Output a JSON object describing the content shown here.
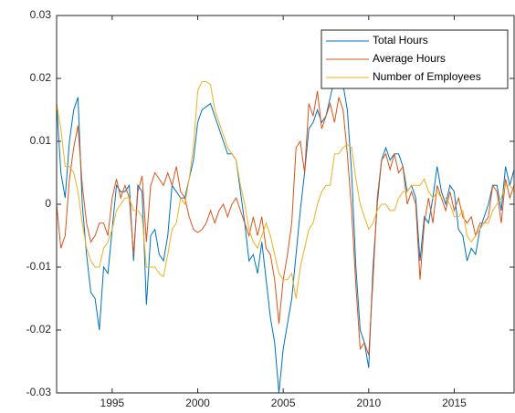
{
  "chart_data": {
    "type": "line",
    "x": [
      1991.75,
      1992,
      1992.25,
      1992.5,
      1992.75,
      1993,
      1993.25,
      1993.5,
      1993.75,
      1994,
      1994.25,
      1994.5,
      1994.75,
      1995,
      1995.25,
      1995.5,
      1995.75,
      1996,
      1996.25,
      1996.5,
      1996.75,
      1997,
      1997.25,
      1997.5,
      1997.75,
      1998,
      1998.25,
      1998.5,
      1998.75,
      1999,
      1999.25,
      1999.5,
      1999.75,
      2000,
      2000.25,
      2000.5,
      2000.75,
      2001,
      2001.25,
      2001.5,
      2001.75,
      2002,
      2002.25,
      2002.5,
      2002.75,
      2003,
      2003.25,
      2003.5,
      2003.75,
      2004,
      2004.25,
      2004.5,
      2004.75,
      2005,
      2005.25,
      2005.5,
      2005.75,
      2006,
      2006.25,
      2006.5,
      2006.75,
      2007,
      2007.25,
      2007.5,
      2007.75,
      2008,
      2008.25,
      2008.5,
      2008.75,
      2009,
      2009.25,
      2009.5,
      2009.75,
      2010,
      2010.25,
      2010.5,
      2010.75,
      2011,
      2011.25,
      2011.5,
      2011.75,
      2012,
      2012.25,
      2012.5,
      2012.75,
      2013,
      2013.25,
      2013.5,
      2013.75,
      2014,
      2014.25,
      2014.5,
      2014.75,
      2015,
      2015.25,
      2015.5,
      2015.75,
      2016,
      2016.25,
      2016.5,
      2016.75,
      2017,
      2017.25,
      2017.5,
      2017.75,
      2018,
      2018.25,
      2018.5
    ],
    "series": [
      {
        "name": "Total Hours",
        "color": "#0072BD",
        "values": [
          0.016,
          0.005,
          0.001,
          0.01,
          0.015,
          0.017,
          0.0,
          -0.008,
          -0.014,
          -0.015,
          -0.02,
          -0.01,
          -0.011,
          -0.004,
          0.003,
          0.002,
          0.002,
          0.003,
          -0.009,
          0.003,
          0.002,
          -0.016,
          -0.005,
          -0.004,
          -0.008,
          -0.009,
          -0.005,
          0.003,
          0.002,
          0.001,
          0.001,
          0.004,
          0.007,
          0.013,
          0.015,
          0.0155,
          0.016,
          0.014,
          0.012,
          0.01,
          0.008,
          0.008,
          0.007,
          0.002,
          -0.003,
          -0.009,
          -0.008,
          -0.011,
          -0.006,
          -0.012,
          -0.018,
          -0.022,
          -0.03,
          -0.023,
          -0.019,
          -0.015,
          -0.008,
          -0.001,
          0.005,
          0.012,
          0.013,
          0.015,
          0.013,
          0.014,
          0.017,
          0.02,
          0.02,
          0.019,
          0.015,
          0.005,
          -0.01,
          -0.02,
          -0.022,
          -0.026,
          -0.01,
          0.0,
          0.007,
          0.009,
          0.007,
          0.008,
          0.008,
          0.006,
          0.002,
          0.003,
          0.001,
          -0.009,
          -0.002,
          -0.003,
          0.001,
          0.006,
          0.002,
          0.0,
          0.003,
          0.002,
          -0.004,
          -0.005,
          -0.009,
          -0.007,
          -0.008,
          -0.004,
          -0.002,
          0.0,
          0.003,
          0.003,
          -0.001,
          0.006,
          0.003,
          0.0055
        ]
      },
      {
        "name": "Average Hours",
        "color": "#D95319",
        "values": [
          0.0,
          -0.007,
          -0.005,
          0.004,
          0.009,
          0.0125,
          0.003,
          -0.003,
          -0.006,
          -0.005,
          -0.003,
          -0.003,
          -0.005,
          0.001,
          0.004,
          0.001,
          0.003,
          0.001,
          -0.008,
          0.002,
          0.0045,
          -0.006,
          0.003,
          0.005,
          0.004,
          0.003,
          0.005,
          0.003,
          0.006,
          0.002,
          0.001,
          -0.002,
          -0.004,
          -0.0045,
          -0.004,
          -0.003,
          -0.001,
          -0.003,
          -0.001,
          0.0,
          -0.002,
          0.0,
          0.001,
          -0.001,
          -0.003,
          -0.005,
          -0.002,
          -0.005,
          -0.002,
          -0.007,
          -0.008,
          -0.012,
          -0.019,
          -0.012,
          -0.008,
          -0.003,
          0.009,
          0.01,
          0.005,
          0.016,
          0.014,
          0.018,
          0.012,
          0.014,
          0.016,
          0.013,
          0.017,
          0.015,
          0.008,
          -0.001,
          -0.013,
          -0.023,
          -0.022,
          -0.024,
          -0.012,
          0.001,
          0.007,
          0.008,
          0.0055,
          0.008,
          0.005,
          0.006,
          0.0,
          0.002,
          0.0,
          -0.012,
          -0.003,
          0.001,
          -0.003,
          0.003,
          0.001,
          -0.001,
          0.002,
          -0.001,
          0.001,
          -0.002,
          -0.003,
          -0.002,
          -0.005,
          -0.003,
          -0.003,
          -0.002,
          0.003,
          0.002,
          -0.003,
          0.004,
          0.001,
          0.003
        ]
      },
      {
        "name": "Number of Employees",
        "color": "#EDB120",
        "values": [
          0.016,
          0.012,
          0.006,
          0.006,
          0.005,
          0.002,
          -0.003,
          -0.007,
          -0.009,
          -0.01,
          -0.01,
          -0.007,
          -0.006,
          -0.004,
          -0.001,
          0.0,
          0.001,
          0.001,
          -0.001,
          -0.001,
          -0.002,
          -0.01,
          -0.01,
          -0.01,
          -0.011,
          -0.0115,
          -0.008,
          -0.004,
          -0.003,
          0.001,
          0.0,
          0.004,
          0.009,
          0.018,
          0.0195,
          0.0195,
          0.019,
          0.015,
          0.013,
          0.011,
          0.009,
          0.008,
          0.007,
          0.003,
          0.0,
          -0.004,
          -0.006,
          -0.007,
          -0.005,
          -0.003,
          -0.005,
          -0.008,
          -0.011,
          -0.012,
          -0.012,
          -0.011,
          -0.015,
          -0.01,
          -0.007,
          -0.004,
          -0.003,
          0.0,
          0.002,
          0.003,
          0.003,
          0.008,
          0.008,
          0.009,
          0.0095,
          0.009,
          0.004,
          0.0,
          -0.002,
          -0.004,
          -0.003,
          -0.001,
          0.0,
          0.0,
          -0.001,
          -0.001,
          0.001,
          0.002,
          0.002,
          0.003,
          0.003,
          0.003,
          0.004,
          0.002,
          0.001,
          0.002,
          0.001,
          0.001,
          0.0,
          -0.002,
          -0.002,
          -0.001,
          -0.005,
          -0.006,
          -0.005,
          -0.004,
          -0.003,
          -0.003,
          -0.001,
          0.0,
          0.001,
          0.003,
          0.003,
          0.002
        ]
      }
    ],
    "xlim": [
      1991.75,
      2018.5
    ],
    "xticks": [
      1995,
      2000,
      2005,
      2010,
      2015
    ],
    "ylim": [
      -0.03,
      0.03
    ],
    "yticks": [
      -0.03,
      -0.02,
      -0.01,
      0,
      0.01,
      0.02,
      0.03
    ],
    "legend": "top-right"
  }
}
